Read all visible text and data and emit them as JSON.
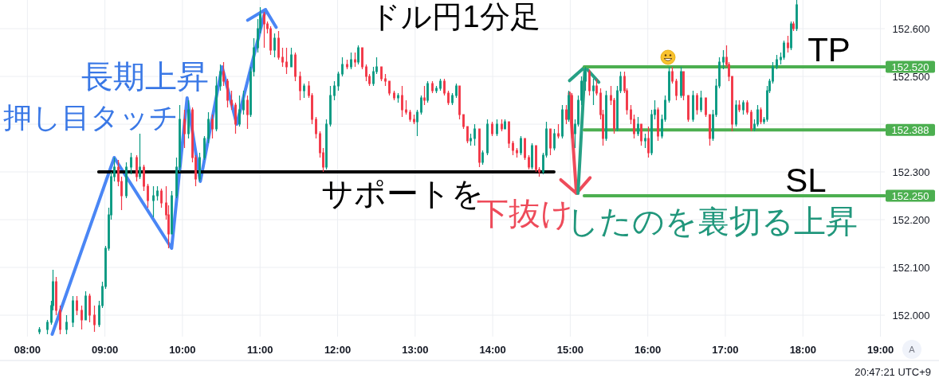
{
  "chart_data": {
    "type": "candlestick",
    "title": "ドル円1分足",
    "x": [
      8.15,
      8.25,
      8.3,
      8.33,
      8.37,
      8.42,
      8.5,
      8.58,
      8.63,
      8.7,
      8.75,
      8.8,
      8.86,
      8.92,
      8.96,
      9,
      9.04,
      9.08,
      9.12,
      9.17,
      9.21,
      9.27,
      9.33,
      9.4,
      9.45,
      9.5,
      9.55,
      9.62,
      9.67,
      9.72,
      9.78,
      9.82,
      9.86,
      9.92,
      9.96,
      10.02,
      10.07,
      10.12,
      10.17,
      10.22,
      10.28,
      10.33,
      10.38,
      10.43,
      10.48,
      10.53,
      10.58,
      10.63,
      10.68,
      10.73,
      10.78,
      10.83,
      10.87,
      10.92,
      10.97,
      11,
      11.05,
      11.09,
      11.13,
      11.18,
      11.23,
      11.29,
      11.34,
      11.4,
      11.45,
      11.51,
      11.56,
      11.62,
      11.67,
      11.72,
      11.77,
      11.81,
      11.85,
      11.9,
      11.95,
      12,
      12.06,
      12.12,
      12.17,
      12.22,
      12.26,
      12.31,
      12.36,
      12.41,
      12.46,
      12.5,
      12.56,
      12.61,
      12.66,
      12.72,
      12.78,
      12.83,
      12.88,
      12.93,
      12.98,
      13.02,
      13.07,
      13.12,
      13.16,
      13.22,
      13.27,
      13.32,
      13.37,
      13.42,
      13.47,
      13.53,
      13.57,
      13.62,
      13.67,
      13.71,
      13.76,
      13.82,
      13.87,
      13.93,
      13.99,
      14.05,
      14.11,
      14.15,
      14.2,
      14.26,
      14.31,
      14.36,
      14.41,
      14.46,
      14.5,
      14.55,
      14.6,
      14.65,
      14.69,
      14.74,
      14.79,
      14.84,
      14.89,
      14.94,
      14.98,
      15.02,
      15.06,
      15.1,
      15.14,
      15.19,
      15.24,
      15.29,
      15.34,
      15.39,
      15.42,
      15.46,
      15.52,
      15.56,
      15.6,
      15.64,
      15.69,
      15.73,
      15.78,
      15.82,
      15.87,
      15.91,
      15.96,
      16,
      16.04,
      16.09,
      16.13,
      16.18,
      16.22,
      16.27,
      16.31,
      16.36,
      16.42,
      16.46,
      16.52,
      16.58,
      16.63,
      16.68,
      16.74,
      16.79,
      16.84,
      16.88,
      16.92,
      16.97,
      17.01,
      17.04,
      17.08,
      17.13,
      17.18,
      17.23,
      17.28,
      17.33,
      17.37,
      17.41,
      17.45,
      17.49,
      17.53,
      17.57,
      17.61,
      17.66,
      17.71,
      17.75,
      17.8,
      17.84,
      17.87,
      17.91
    ],
    "ohlc": [
      [
        151.965,
        151.975,
        151.96,
        151.97
      ],
      [
        151.97,
        151.99,
        151.96,
        151.985
      ],
      [
        151.985,
        152.03,
        151.98,
        152.02
      ],
      [
        152.02,
        152.095,
        152.01,
        152.07
      ],
      [
        152.07,
        152.08,
        152.0,
        152.01
      ],
      [
        152.01,
        152.02,
        151.96,
        151.97
      ],
      [
        151.97,
        152.0,
        151.96,
        151.985
      ],
      [
        151.985,
        152.04,
        151.975,
        152.03
      ],
      [
        152.03,
        152.04,
        152.0,
        152.01
      ],
      [
        152.01,
        152.02,
        151.97,
        151.99
      ],
      [
        151.99,
        152.05,
        151.99,
        152.04
      ],
      [
        152.04,
        152.045,
        151.985,
        152.0
      ],
      [
        152.0,
        152.02,
        151.965,
        151.98
      ],
      [
        151.98,
        152.03,
        151.975,
        152.02
      ],
      [
        152.02,
        152.07,
        152.015,
        152.06
      ],
      [
        152.06,
        152.145,
        152.055,
        152.14
      ],
      [
        152.14,
        152.225,
        152.135,
        152.21
      ],
      [
        152.21,
        152.3,
        152.2,
        152.29
      ],
      [
        152.29,
        152.33,
        152.28,
        152.31
      ],
      [
        152.31,
        152.325,
        152.27,
        152.28
      ],
      [
        152.28,
        152.29,
        152.22,
        152.25
      ],
      [
        152.25,
        152.32,
        152.245,
        152.31
      ],
      [
        152.31,
        152.34,
        152.295,
        152.33
      ],
      [
        152.33,
        152.335,
        152.28,
        152.29
      ],
      [
        152.29,
        152.38,
        152.285,
        152.31
      ],
      [
        152.31,
        152.315,
        152.26,
        152.27
      ],
      [
        152.27,
        152.275,
        152.225,
        152.24
      ],
      [
        152.24,
        152.27,
        152.205,
        152.25
      ],
      [
        152.25,
        152.27,
        152.24,
        152.26
      ],
      [
        152.26,
        152.265,
        152.225,
        152.235
      ],
      [
        152.235,
        152.27,
        152.2,
        152.21
      ],
      [
        152.21,
        152.23,
        152.14,
        152.17
      ],
      [
        152.17,
        152.26,
        152.17,
        152.25
      ],
      [
        152.25,
        152.33,
        152.245,
        152.31
      ],
      [
        152.31,
        152.44,
        152.3,
        152.41
      ],
      [
        152.41,
        152.43,
        152.35,
        152.38
      ],
      [
        152.38,
        152.45,
        152.37,
        152.43
      ],
      [
        152.43,
        152.435,
        152.32,
        152.33
      ],
      [
        152.33,
        152.335,
        152.27,
        152.285
      ],
      [
        152.285,
        152.34,
        152.28,
        152.33
      ],
      [
        152.33,
        152.375,
        152.325,
        152.37
      ],
      [
        152.37,
        152.425,
        152.36,
        152.41
      ],
      [
        152.41,
        152.42,
        152.37,
        152.39
      ],
      [
        152.39,
        152.5,
        152.385,
        152.48
      ],
      [
        152.48,
        152.525,
        152.47,
        152.51
      ],
      [
        152.51,
        152.53,
        152.48,
        152.49
      ],
      [
        152.49,
        152.495,
        152.435,
        152.45
      ],
      [
        152.45,
        152.47,
        152.43,
        152.44
      ],
      [
        152.44,
        152.445,
        152.38,
        152.4
      ],
      [
        152.4,
        152.46,
        152.395,
        152.43
      ],
      [
        152.43,
        152.47,
        152.42,
        152.45
      ],
      [
        152.45,
        152.46,
        152.39,
        152.42
      ],
      [
        152.42,
        152.52,
        152.415,
        152.51
      ],
      [
        152.51,
        152.58,
        152.5,
        152.56
      ],
      [
        152.56,
        152.62,
        152.55,
        152.6
      ],
      [
        152.6,
        152.645,
        152.59,
        152.63
      ],
      [
        152.63,
        152.635,
        152.56,
        152.61
      ],
      [
        152.61,
        152.615,
        152.59,
        152.6
      ],
      [
        152.6,
        152.605,
        152.545,
        152.555
      ],
      [
        152.555,
        152.59,
        152.54,
        152.58
      ],
      [
        152.58,
        152.595,
        152.535,
        152.54
      ],
      [
        152.54,
        152.56,
        152.52,
        152.53
      ],
      [
        152.53,
        152.56,
        152.505,
        152.52
      ],
      [
        152.52,
        152.56,
        152.52,
        152.545
      ],
      [
        152.545,
        152.55,
        152.49,
        152.5
      ],
      [
        152.5,
        152.51,
        152.45,
        152.47
      ],
      [
        152.47,
        152.485,
        152.455,
        152.48
      ],
      [
        152.48,
        152.49,
        152.455,
        152.46
      ],
      [
        152.46,
        152.465,
        152.4,
        152.41
      ],
      [
        152.41,
        152.415,
        152.37,
        152.38
      ],
      [
        152.38,
        152.385,
        152.33,
        152.34
      ],
      [
        152.34,
        152.35,
        152.3,
        152.31
      ],
      [
        152.31,
        152.41,
        152.305,
        152.4
      ],
      [
        152.4,
        152.48,
        152.395,
        152.46
      ],
      [
        152.46,
        152.49,
        152.45,
        152.48
      ],
      [
        152.48,
        152.51,
        152.47,
        152.505
      ],
      [
        152.505,
        152.54,
        152.5,
        152.525
      ],
      [
        152.525,
        152.535,
        152.515,
        152.52
      ],
      [
        152.52,
        152.55,
        152.515,
        152.535
      ],
      [
        152.535,
        152.55,
        152.52,
        152.53
      ],
      [
        152.53,
        152.565,
        152.525,
        152.56
      ],
      [
        152.56,
        152.56,
        152.515,
        152.52
      ],
      [
        152.52,
        152.525,
        152.49,
        152.5
      ],
      [
        152.5,
        152.505,
        152.48,
        152.485
      ],
      [
        152.485,
        152.52,
        152.48,
        152.51
      ],
      [
        152.51,
        152.54,
        152.505,
        152.52
      ],
      [
        152.52,
        152.52,
        152.49,
        152.495
      ],
      [
        152.495,
        152.505,
        152.48,
        152.49
      ],
      [
        152.49,
        152.49,
        152.46,
        152.465
      ],
      [
        152.465,
        152.47,
        152.45,
        152.455
      ],
      [
        152.455,
        152.465,
        152.445,
        152.46
      ],
      [
        152.46,
        152.48,
        152.415,
        152.43
      ],
      [
        152.43,
        152.45,
        152.42,
        152.425
      ],
      [
        152.425,
        152.43,
        152.405,
        152.41
      ],
      [
        152.41,
        152.42,
        152.4,
        152.405
      ],
      [
        152.405,
        152.43,
        152.375,
        152.425
      ],
      [
        152.425,
        152.46,
        152.42,
        152.455
      ],
      [
        152.455,
        152.48,
        152.44,
        152.45
      ],
      [
        152.45,
        152.49,
        152.445,
        152.485
      ],
      [
        152.485,
        152.49,
        152.465,
        152.47
      ],
      [
        152.47,
        152.48,
        152.465,
        152.475
      ],
      [
        152.475,
        152.495,
        152.47,
        152.49
      ],
      [
        152.49,
        152.495,
        152.46,
        152.465
      ],
      [
        152.465,
        152.47,
        152.44,
        152.445
      ],
      [
        152.445,
        152.465,
        152.44,
        152.46
      ],
      [
        152.46,
        152.485,
        152.455,
        152.48
      ],
      [
        152.48,
        152.48,
        152.41,
        152.42
      ],
      [
        152.42,
        152.42,
        152.39,
        152.395
      ],
      [
        152.395,
        152.395,
        152.36,
        152.365
      ],
      [
        152.365,
        152.38,
        152.355,
        152.37
      ],
      [
        152.37,
        152.4,
        152.355,
        152.39
      ],
      [
        152.39,
        152.39,
        152.31,
        152.32
      ],
      [
        152.32,
        152.345,
        152.315,
        152.34
      ],
      [
        152.34,
        152.41,
        152.335,
        152.4
      ],
      [
        152.4,
        152.405,
        152.375,
        152.38
      ],
      [
        152.38,
        152.41,
        152.375,
        152.4
      ],
      [
        152.4,
        152.41,
        152.385,
        152.39
      ],
      [
        152.39,
        152.41,
        152.39,
        152.405
      ],
      [
        152.405,
        152.405,
        152.35,
        152.36
      ],
      [
        152.36,
        152.365,
        152.335,
        152.345
      ],
      [
        152.345,
        152.35,
        152.33,
        152.34
      ],
      [
        152.34,
        152.375,
        152.335,
        152.37
      ],
      [
        152.37,
        152.37,
        152.325,
        152.33
      ],
      [
        152.33,
        152.335,
        152.305,
        152.31
      ],
      [
        152.31,
        152.36,
        152.305,
        152.355
      ],
      [
        152.355,
        152.355,
        152.3,
        152.305
      ],
      [
        152.305,
        152.31,
        152.29,
        152.3
      ],
      [
        152.3,
        152.34,
        152.295,
        152.335
      ],
      [
        152.335,
        152.405,
        152.33,
        152.39
      ],
      [
        152.39,
        152.39,
        152.335,
        152.35
      ],
      [
        152.35,
        152.39,
        152.345,
        152.38
      ],
      [
        152.38,
        152.4,
        152.37,
        152.375
      ],
      [
        152.375,
        152.44,
        152.37,
        152.43
      ],
      [
        152.43,
        152.44,
        152.4,
        152.41
      ],
      [
        152.41,
        152.47,
        152.405,
        152.46
      ],
      [
        152.46,
        152.465,
        152.37,
        152.38
      ],
      [
        152.38,
        152.41,
        152.35,
        152.4
      ],
      [
        152.4,
        152.46,
        152.395,
        152.45
      ],
      [
        152.45,
        152.5,
        152.44,
        152.49
      ],
      [
        152.49,
        152.52,
        152.47,
        152.51
      ],
      [
        152.51,
        152.515,
        152.46,
        152.47
      ],
      [
        152.47,
        152.495,
        152.44,
        152.48
      ],
      [
        152.48,
        152.495,
        152.46,
        152.465
      ],
      [
        152.465,
        152.475,
        152.41,
        152.42
      ],
      [
        152.42,
        152.43,
        152.355,
        152.37
      ],
      [
        152.37,
        152.47,
        152.365,
        152.46
      ],
      [
        152.46,
        152.48,
        152.44,
        152.45
      ],
      [
        152.45,
        152.455,
        152.38,
        152.39
      ],
      [
        152.39,
        152.48,
        152.385,
        152.47
      ],
      [
        152.47,
        152.51,
        152.465,
        152.5
      ],
      [
        152.5,
        152.51,
        152.465,
        152.47
      ],
      [
        152.47,
        152.475,
        152.42,
        152.43
      ],
      [
        152.43,
        152.44,
        152.4,
        152.41
      ],
      [
        152.41,
        152.42,
        152.37,
        152.38
      ],
      [
        152.38,
        152.415,
        152.375,
        152.4
      ],
      [
        152.4,
        152.4,
        152.355,
        152.365
      ],
      [
        152.365,
        152.38,
        152.35,
        152.37
      ],
      [
        152.37,
        152.395,
        152.33,
        152.34
      ],
      [
        152.34,
        152.43,
        152.335,
        152.42
      ],
      [
        152.42,
        152.45,
        152.41,
        152.43
      ],
      [
        152.43,
        152.435,
        152.365,
        152.375
      ],
      [
        152.375,
        152.42,
        152.37,
        152.41
      ],
      [
        152.41,
        152.46,
        152.405,
        152.45
      ],
      [
        152.45,
        152.52,
        152.445,
        152.51
      ],
      [
        152.51,
        152.52,
        152.485,
        152.49
      ],
      [
        152.49,
        152.495,
        152.45,
        152.46
      ],
      [
        152.46,
        152.52,
        152.455,
        152.51
      ],
      [
        152.51,
        152.51,
        152.45,
        152.46
      ],
      [
        152.46,
        152.46,
        152.405,
        152.41
      ],
      [
        152.41,
        152.47,
        152.405,
        152.46
      ],
      [
        152.46,
        152.465,
        152.42,
        152.43
      ],
      [
        152.43,
        152.47,
        152.425,
        152.455
      ],
      [
        152.455,
        152.455,
        152.415,
        152.42
      ],
      [
        152.42,
        152.42,
        152.355,
        152.37
      ],
      [
        152.37,
        152.43,
        152.365,
        152.42
      ],
      [
        152.42,
        152.495,
        152.415,
        152.48
      ],
      [
        152.48,
        152.54,
        152.475,
        152.53
      ],
      [
        152.53,
        152.555,
        152.515,
        152.54
      ],
      [
        152.54,
        152.565,
        152.52,
        152.525
      ],
      [
        152.525,
        152.53,
        152.49,
        152.5
      ],
      [
        152.5,
        152.5,
        152.385,
        152.4
      ],
      [
        152.4,
        152.45,
        152.395,
        152.44
      ],
      [
        152.44,
        152.45,
        152.425,
        152.43
      ],
      [
        152.43,
        152.45,
        152.42,
        152.445
      ],
      [
        152.445,
        152.45,
        152.42,
        152.425
      ],
      [
        152.425,
        152.43,
        152.385,
        152.39
      ],
      [
        152.39,
        152.41,
        152.385,
        152.4
      ],
      [
        152.4,
        152.44,
        152.395,
        152.43
      ],
      [
        152.43,
        152.435,
        152.4,
        152.405
      ],
      [
        152.405,
        152.415,
        152.4,
        152.41
      ],
      [
        152.41,
        152.48,
        152.405,
        152.47
      ],
      [
        152.47,
        152.495,
        152.465,
        152.49
      ],
      [
        152.49,
        152.53,
        152.485,
        152.52
      ],
      [
        152.52,
        152.545,
        152.515,
        152.535
      ],
      [
        152.535,
        152.55,
        152.525,
        152.54
      ],
      [
        152.54,
        152.575,
        152.535,
        152.57
      ],
      [
        152.57,
        152.585,
        152.55,
        152.56
      ],
      [
        152.56,
        152.615,
        152.555,
        152.61
      ],
      [
        152.61,
        152.615,
        152.595,
        152.6
      ],
      [
        152.6,
        152.66,
        152.595,
        152.65
      ]
    ],
    "xlim": [
      7.647,
      19.056
    ],
    "ylim": [
      151.955,
      152.66
    ],
    "xticks": [
      {
        "value": 8,
        "label": "08:00"
      },
      {
        "value": 9,
        "label": "09:00"
      },
      {
        "value": 10,
        "label": "10:00"
      },
      {
        "value": 11,
        "label": "11:00"
      },
      {
        "value": 12,
        "label": "12:00"
      },
      {
        "value": 13,
        "label": "13:00"
      },
      {
        "value": 14,
        "label": "14:00"
      },
      {
        "value": 15,
        "label": "15:00"
      },
      {
        "value": 16,
        "label": "16:00"
      },
      {
        "value": 17,
        "label": "17:00"
      },
      {
        "value": 18,
        "label": "18:00"
      },
      {
        "value": 19,
        "label": "19:00"
      }
    ],
    "yticks": [
      {
        "value": 152,
        "label": "152.000"
      },
      {
        "value": 152.1,
        "label": "152.100"
      },
      {
        "value": 152.2,
        "label": "152.200"
      },
      {
        "value": 152.3,
        "label": "152.300"
      },
      {
        "value": 152.4,
        "label": null
      },
      {
        "value": 152.5,
        "label": "152.500"
      },
      {
        "value": 152.6,
        "label": "152.600"
      }
    ],
    "grid": true,
    "series": [
      {
        "type": "line",
        "x": [
          8.32,
          9.12,
          9.86,
          10.06,
          10.23,
          10.51,
          10.7,
          11.07
        ],
        "values": [
          151.96,
          152.33,
          152.14,
          152.455,
          152.28,
          152.52,
          152.4,
          152.64
        ],
        "color": "#4a86f5"
      },
      {
        "type": "line",
        "x": [
          8.92,
          14.79
        ],
        "values": [
          152.3,
          152.3
        ],
        "color": "#000000"
      },
      {
        "type": "line",
        "x": [
          14.99,
          15.08
        ],
        "values": [
          152.465,
          152.255
        ],
        "color": "#ee4b5a"
      },
      {
        "type": "line",
        "x": [
          15.1,
          15.19
        ],
        "values": [
          152.255,
          152.52
        ],
        "color": "#26a085"
      },
      {
        "type": "line",
        "x": [
          15.18,
          19.056
        ],
        "values": [
          152.52,
          152.52
        ],
        "color": "#4caf50",
        "value_labels": [
          null,
          "152.520"
        ]
      },
      {
        "type": "line",
        "x": [
          15.18,
          19.056
        ],
        "values": [
          152.388,
          152.388
        ],
        "color": "#4caf50",
        "value_labels": [
          null,
          "152.388"
        ]
      },
      {
        "type": "line",
        "x": [
          15.18,
          19.056
        ],
        "values": [
          152.25,
          152.25
        ],
        "color": "#4caf50",
        "value_labels": [
          null,
          "152.250"
        ]
      }
    ],
    "annotations": [
      "長期上昇",
      "押し目タッチ",
      "サポートを",
      "下抜け",
      "したのを裏切る上昇",
      "TP",
      "SL",
      "20:47:21 UTC+9",
      "A"
    ]
  }
}
